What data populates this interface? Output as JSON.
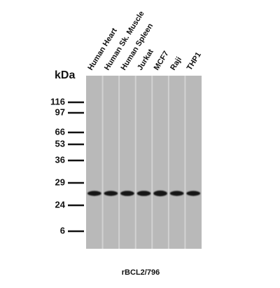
{
  "unit_label": "kDa",
  "markers": [
    "116",
    "97",
    "66",
    "53",
    "36",
    "29",
    "24",
    "6"
  ],
  "lanes": [
    "Human Heart",
    "Human Sk. Muscle",
    "Human Spleen",
    "Jurkat",
    "MCF7",
    "Raji",
    "THP1"
  ],
  "caption": "rBCL2/796"
}
